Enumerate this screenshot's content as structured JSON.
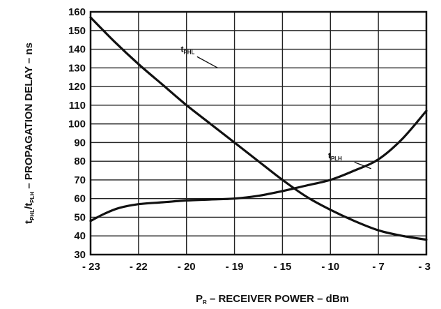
{
  "chart_data": {
    "type": "line",
    "xlabel": "P_R – RECEIVER POWER – dBm",
    "xlabel_main": "P",
    "xlabel_sub": "R",
    "xlabel_rest": " – RECEIVER POWER – dBm",
    "ylabel": "t_PHL/t_PLH – PROPAGATION DELAY – ns",
    "ylabel_t1": "t",
    "ylabel_sub1": "PHL",
    "ylabel_mid": "/t",
    "ylabel_sub2": "PLH",
    "ylabel_rest": " – PROPAGATION DELAY – ns",
    "ylim": [
      30,
      160
    ],
    "y_ticks": [
      "30",
      "40",
      "50",
      "60",
      "70",
      "80",
      "90",
      "100",
      "110",
      "120",
      "130",
      "140",
      "150",
      "160"
    ],
    "x_ticks": [
      "- 23",
      "- 22",
      "- 20",
      "- 19",
      "- 15",
      "- 10",
      "- 7",
      "- 3"
    ],
    "grid": true,
    "series": [
      {
        "name": "tPHL",
        "label_main": "t",
        "label_sub": "PHL",
        "x_index": [
          0,
          0.5,
          1,
          1.5,
          2,
          2.5,
          3,
          3.5,
          4,
          4.5,
          5,
          5.5,
          6,
          6.5,
          7
        ],
        "values": [
          157,
          144,
          132,
          121,
          110,
          100,
          90,
          80,
          70,
          61,
          54,
          48,
          43,
          40,
          38
        ]
      },
      {
        "name": "tPLH",
        "label_main": "t",
        "label_sub": "PLH",
        "x_index": [
          0,
          0.3,
          0.6,
          1,
          1.5,
          2,
          2.5,
          3,
          3.5,
          4,
          4.5,
          5,
          5.5,
          6,
          6.5,
          7
        ],
        "values": [
          48,
          52,
          55,
          57,
          58,
          59,
          59.5,
          60,
          61.5,
          64,
          67,
          70,
          75,
          81,
          92,
          107
        ]
      }
    ]
  }
}
